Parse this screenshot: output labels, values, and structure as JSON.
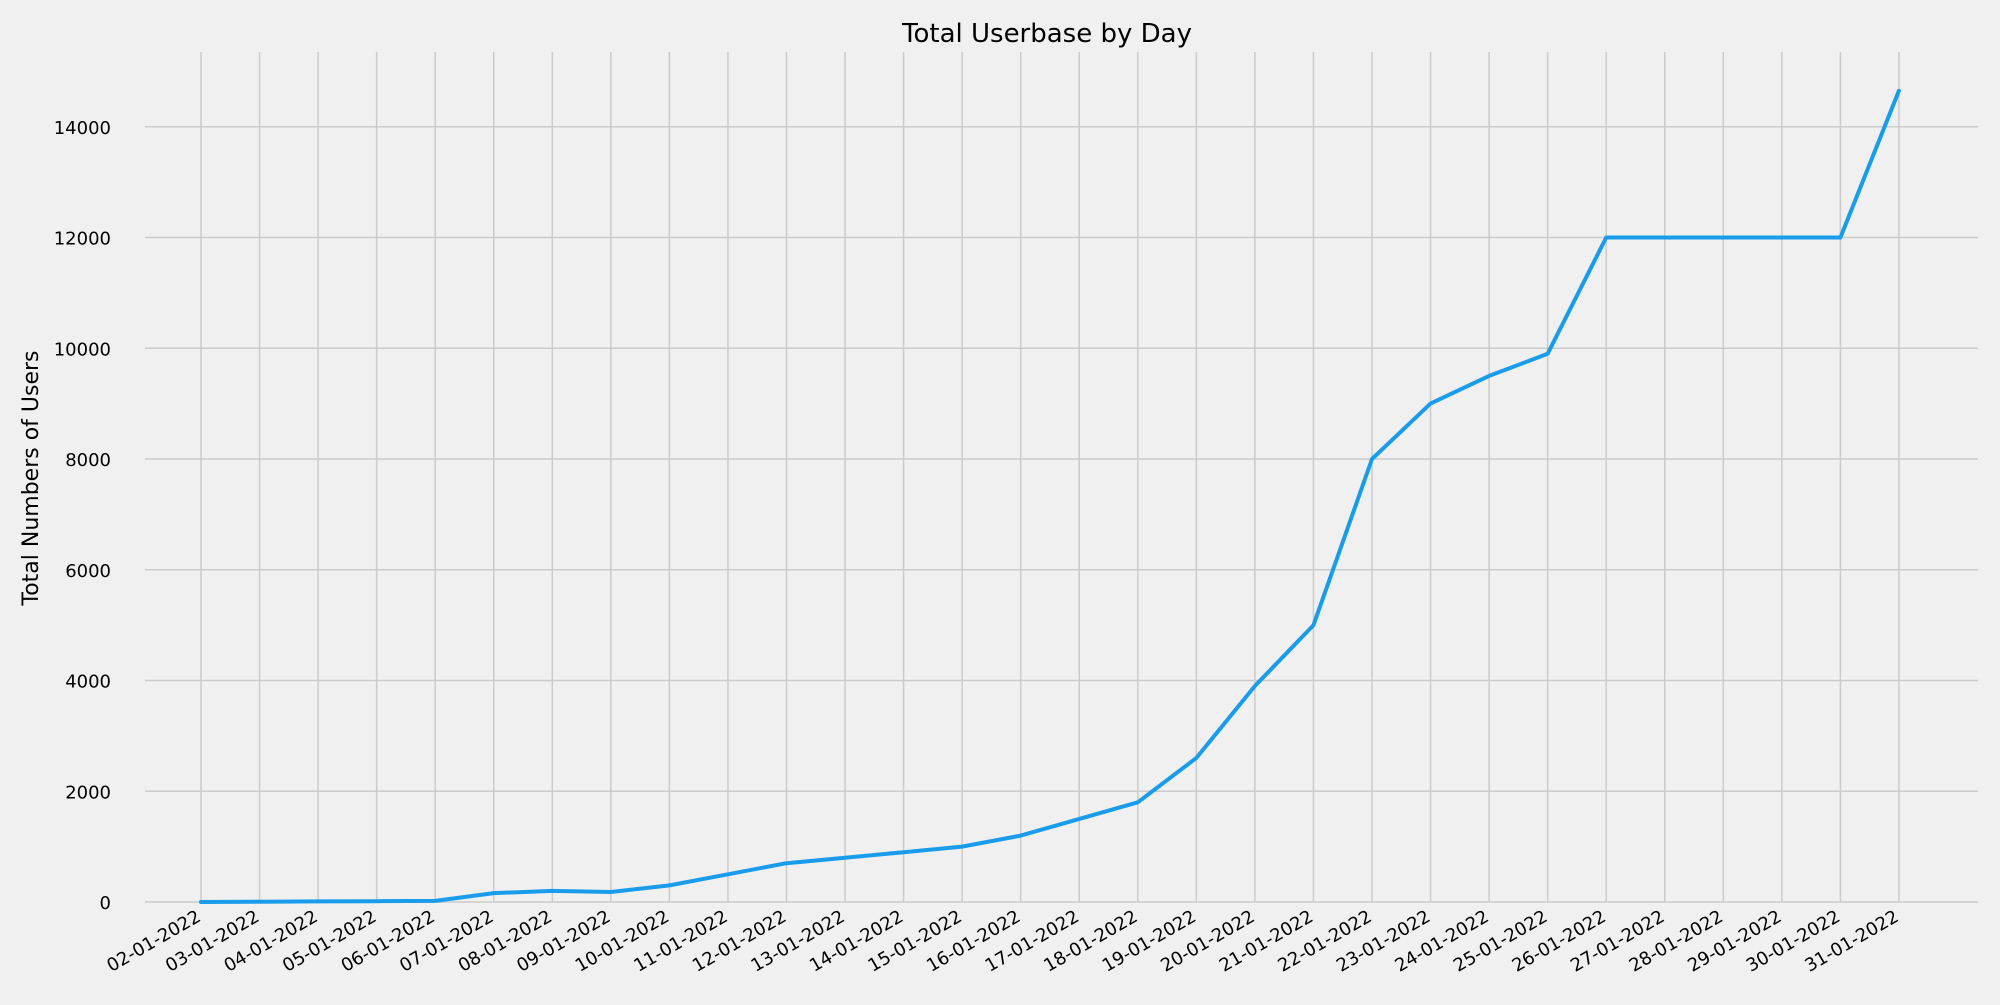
{
  "chart_data": {
    "type": "line",
    "title": "Total Userbase by Day",
    "xlabel": "",
    "ylabel": "Total Numbers of Users",
    "x": [
      "02-01-2022",
      "03-01-2022",
      "04-01-2022",
      "05-01-2022",
      "06-01-2022",
      "07-01-2022",
      "08-01-2022",
      "09-01-2022",
      "10-01-2022",
      "11-01-2022",
      "12-01-2022",
      "13-01-2022",
      "14-01-2022",
      "15-01-2022",
      "16-01-2022",
      "17-01-2022",
      "18-01-2022",
      "19-01-2022",
      "20-01-2022",
      "21-01-2022",
      "22-01-2022",
      "23-01-2022",
      "24-01-2022",
      "25-01-2022",
      "26-01-2022",
      "27-01-2022",
      "28-01-2022",
      "29-01-2022",
      "30-01-2022",
      "31-01-2022"
    ],
    "series": [
      {
        "name": "",
        "values": [
          0,
          5,
          10,
          15,
          20,
          160,
          200,
          180,
          300,
          500,
          700,
          800,
          900,
          1000,
          1200,
          1500,
          1800,
          2600,
          3900,
          5000,
          8000,
          9000,
          9500,
          9900,
          12000,
          12000,
          12000,
          12000,
          12000,
          14650
        ],
        "color": "#1a9cec"
      }
    ],
    "yticks": [
      0,
      2000,
      4000,
      6000,
      8000,
      10000,
      12000,
      14000
    ],
    "ylim": [
      0,
      15350
    ],
    "grid": true,
    "colors": {
      "background": "#f0f0f0",
      "grid": "#cbcbcb",
      "line": "#1a9cec"
    }
  }
}
